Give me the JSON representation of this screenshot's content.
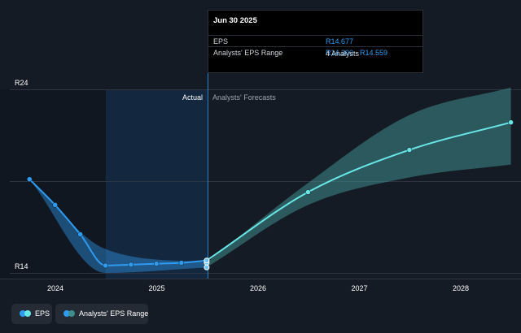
{
  "chart_data": {
    "type": "line",
    "title": "",
    "xlabel": "",
    "ylabel": "",
    "x_ticks": [
      "2024",
      "2025",
      "2026",
      "2027",
      "2028"
    ],
    "y_ticks": [
      "R14",
      "R24"
    ],
    "ylim": [
      14,
      24
    ],
    "region_labels": {
      "actual": "Actual",
      "forecast": "Analysts' Forecasts"
    },
    "series": [
      {
        "name": "EPS",
        "color": "#2f9bf0",
        "points": [
          {
            "x": "2023-09-30",
            "y": 19.1
          },
          {
            "x": "2023-12-31",
            "y": 17.7
          },
          {
            "x": "2024-03-31",
            "y": 16.1
          },
          {
            "x": "2024-06-30",
            "y": 14.4
          },
          {
            "x": "2024-09-30",
            "y": 14.45
          },
          {
            "x": "2024-12-31",
            "y": 14.5
          },
          {
            "x": "2025-03-31",
            "y": 14.55
          },
          {
            "x": "2025-06-30",
            "y": 14.677
          }
        ]
      },
      {
        "name": "EPS Forecast",
        "color": "#68e6e6",
        "points": [
          {
            "x": "2025-06-30",
            "y": 14.677
          },
          {
            "x": "2026-06-30",
            "y": 18.4
          },
          {
            "x": "2027-06-30",
            "y": 20.7
          },
          {
            "x": "2028-06-30",
            "y": 22.2
          }
        ]
      }
    ],
    "ranges": [
      {
        "name": "Analysts' EPS Range",
        "actual_color": "#2f9bf0",
        "forecast_color": "#3e8c8c",
        "low": [
          {
            "x": "2023-09-30",
            "y": 19.1
          },
          {
            "x": "2024-06-30",
            "y": 14.0
          },
          {
            "x": "2025-06-30",
            "y": 14.3
          },
          {
            "x": "2026-06-30",
            "y": 17.7
          },
          {
            "x": "2027-06-30",
            "y": 19.2
          },
          {
            "x": "2028-06-30",
            "y": 19.9
          }
        ],
        "high": [
          {
            "x": "2023-09-30",
            "y": 19.1
          },
          {
            "x": "2024-06-30",
            "y": 15.3
          },
          {
            "x": "2025-06-30",
            "y": 14.559
          },
          {
            "x": "2026-06-30",
            "y": 18.9
          },
          {
            "x": "2027-06-30",
            "y": 22.6
          },
          {
            "x": "2028-06-30",
            "y": 24.1
          }
        ]
      }
    ],
    "legend_placement": "bottom-left",
    "grid": true
  },
  "tooltip": {
    "title": "Jun 30 2025",
    "rows": [
      {
        "label": "EPS",
        "value": "R14.677"
      },
      {
        "label": "Analysts' EPS Range",
        "value": "R14.300 - R14.559"
      }
    ],
    "extra": "4 Analysts"
  },
  "legend": {
    "items": [
      {
        "label": "EPS",
        "colors": [
          "#2f9bf0",
          "#68e6e6"
        ]
      },
      {
        "label": "Analysts' EPS Range",
        "colors": [
          "#2f9bf0",
          "#3e8c8c"
        ]
      }
    ]
  }
}
